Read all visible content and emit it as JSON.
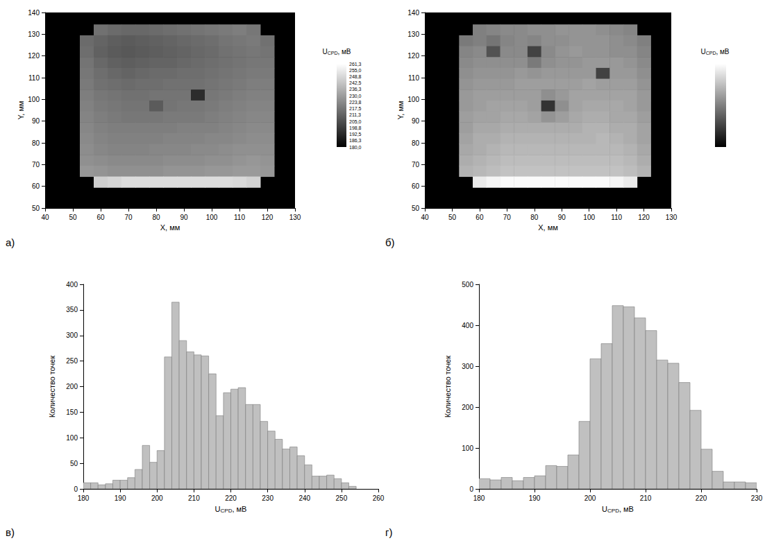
{
  "chart_data": [
    {
      "type": "heatmap",
      "panel": "а)",
      "xlabel": "X, мм",
      "ylabel": "Y, мм",
      "xlim": [
        40,
        130
      ],
      "xticks": [
        40,
        50,
        60,
        70,
        80,
        90,
        100,
        110,
        120,
        130
      ],
      "ylim": [
        50,
        140
      ],
      "yticks": [
        50,
        60,
        70,
        80,
        90,
        100,
        110,
        120,
        130,
        140
      ],
      "grid": false,
      "x": [
        55,
        60,
        65,
        70,
        75,
        80,
        85,
        90,
        95,
        100,
        105,
        110,
        115,
        120
      ],
      "y": [
        132,
        127,
        122,
        117,
        112,
        107,
        102,
        97,
        92,
        87,
        82,
        77,
        72,
        67,
        62
      ],
      "cells": [
        [
          null,
          216,
          214,
          213,
          213,
          214,
          215,
          216,
          217,
          218,
          219,
          220,
          218,
          null
        ],
        [
          214,
          212,
          210,
          209,
          210,
          211,
          212,
          213,
          214,
          215,
          217,
          218,
          219,
          216
        ],
        [
          215,
          211,
          209,
          208,
          209,
          210,
          211,
          212,
          213,
          214,
          216,
          217,
          218,
          217
        ],
        [
          217,
          213,
          211,
          210,
          211,
          212,
          212,
          213,
          214,
          215,
          216,
          217,
          218,
          218
        ],
        [
          218,
          215,
          213,
          212,
          213,
          214,
          214,
          215,
          215,
          216,
          217,
          218,
          219,
          219
        ],
        [
          219,
          216,
          215,
          214,
          215,
          215,
          216,
          216,
          216,
          217,
          218,
          219,
          220,
          220
        ],
        [
          220,
          218,
          217,
          216,
          216,
          217,
          217,
          217,
          194,
          218,
          219,
          220,
          221,
          221
        ],
        [
          221,
          219,
          218,
          217,
          217,
          209,
          217,
          218,
          218,
          219,
          220,
          221,
          222,
          222
        ],
        [
          222,
          220,
          219,
          218,
          218,
          218,
          219,
          219,
          219,
          220,
          221,
          222,
          223,
          223
        ],
        [
          223,
          221,
          220,
          220,
          220,
          220,
          220,
          221,
          221,
          221,
          222,
          223,
          224,
          224
        ],
        [
          224,
          222,
          221,
          221,
          221,
          221,
          222,
          222,
          222,
          223,
          223,
          224,
          225,
          225
        ],
        [
          225,
          223,
          222,
          222,
          222,
          223,
          223,
          223,
          224,
          224,
          225,
          226,
          226,
          226
        ],
        [
          226,
          225,
          224,
          224,
          224,
          224,
          225,
          225,
          225,
          226,
          226,
          227,
          228,
          227
        ],
        [
          228,
          227,
          226,
          226,
          226,
          226,
          227,
          227,
          227,
          228,
          228,
          229,
          229,
          228
        ],
        [
          null,
          246,
          248,
          250,
          250,
          250,
          250,
          250,
          250,
          250,
          250,
          249,
          247,
          null
        ]
      ],
      "colorbar": {
        "title": {
          "base": "U",
          "sub": "CPD",
          "unit": ", мВ"
        },
        "range": [
          180,
          261.25
        ],
        "ticks": [
          {
            "value": 180,
            "label": "180,0"
          },
          {
            "value": 186.25,
            "label": "186,3"
          },
          {
            "value": 192.5,
            "label": "192,5"
          },
          {
            "value": 198.75,
            "label": "198,8"
          },
          {
            "value": 205,
            "label": "205,0"
          },
          {
            "value": 211.25,
            "label": "211,3"
          },
          {
            "value": 217.5,
            "label": "217,5"
          },
          {
            "value": 223.75,
            "label": "223,8"
          },
          {
            "value": 230,
            "label": "230,0"
          },
          {
            "value": 236.25,
            "label": "236,3"
          },
          {
            "value": 242.5,
            "label": "242,5"
          },
          {
            "value": 248.75,
            "label": "248,8"
          },
          {
            "value": 255,
            "label": "255,0"
          },
          {
            "value": 261.25,
            "label": "261,3"
          }
        ]
      }
    },
    {
      "type": "heatmap",
      "panel": "б)",
      "xlabel": "X, мм",
      "ylabel": "Y, мм",
      "xlim": [
        40,
        130
      ],
      "xticks": [
        40,
        50,
        60,
        70,
        80,
        90,
        100,
        110,
        120,
        130
      ],
      "ylim": [
        50,
        140
      ],
      "yticks": [
        50,
        60,
        70,
        80,
        90,
        100,
        110,
        120,
        130,
        140
      ],
      "grid": false,
      "x": [
        55,
        60,
        65,
        70,
        75,
        80,
        85,
        90,
        95,
        100,
        105,
        110,
        115,
        120
      ],
      "y": [
        132,
        127,
        122,
        117,
        112,
        107,
        102,
        97,
        92,
        87,
        82,
        77,
        72,
        67,
        62
      ],
      "cells": [
        [
          null,
          205,
          206,
          207,
          207,
          208,
          208,
          209,
          209,
          209,
          208,
          207,
          206,
          null
        ],
        [
          204,
          205,
          203,
          206,
          207,
          206,
          208,
          208,
          209,
          209,
          209,
          208,
          207,
          205
        ],
        [
          206,
          207,
          196,
          207,
          207,
          193,
          207,
          209,
          210,
          209,
          209,
          208,
          208,
          206
        ],
        [
          207,
          208,
          208,
          208,
          208,
          204,
          208,
          209,
          209,
          210,
          210,
          210,
          209,
          207
        ],
        [
          208,
          209,
          209,
          209,
          210,
          209,
          210,
          210,
          210,
          210,
          193,
          210,
          210,
          208
        ],
        [
          209,
          210,
          210,
          210,
          211,
          211,
          211,
          211,
          211,
          212,
          211,
          211,
          211,
          209
        ],
        [
          210,
          211,
          211,
          211,
          211,
          211,
          208,
          210,
          212,
          212,
          212,
          212,
          212,
          210
        ],
        [
          210,
          211,
          212,
          212,
          212,
          211,
          190,
          208,
          212,
          213,
          213,
          213,
          212,
          210
        ],
        [
          211,
          212,
          212,
          213,
          213,
          212,
          209,
          211,
          213,
          214,
          214,
          213,
          213,
          211
        ],
        [
          211,
          213,
          213,
          214,
          214,
          214,
          214,
          214,
          214,
          215,
          215,
          214,
          214,
          212
        ],
        [
          212,
          214,
          214,
          215,
          215,
          215,
          215,
          215,
          215,
          215,
          216,
          215,
          214,
          212
        ],
        [
          213,
          214,
          215,
          216,
          216,
          216,
          216,
          216,
          216,
          216,
          216,
          216,
          215,
          213
        ],
        [
          214,
          215,
          216,
          217,
          217,
          217,
          217,
          217,
          217,
          217,
          217,
          217,
          216,
          214
        ],
        [
          215,
          216,
          217,
          218,
          218,
          218,
          218,
          218,
          218,
          218,
          218,
          218,
          217,
          215
        ],
        [
          null,
          226,
          228,
          229,
          229,
          229,
          229,
          229,
          229,
          229,
          229,
          228,
          226,
          null
        ]
      ],
      "colorbar": {
        "title": {
          "base": "U",
          "sub": "CPD",
          "unit": ", мВ"
        },
        "range": [
          180,
          230
        ]
      }
    },
    {
      "type": "histogram",
      "panel": "в)",
      "xlabel": {
        "base": "U",
        "sub": "CPD",
        "unit": ", мВ"
      },
      "ylabel": "Количество точек",
      "xlim": [
        180,
        260
      ],
      "xticks": [
        180,
        190,
        200,
        210,
        220,
        230,
        240,
        250,
        260
      ],
      "ylim": [
        0,
        400
      ],
      "yticks": [
        0,
        50,
        100,
        150,
        200,
        250,
        300,
        350,
        400
      ],
      "grid": false,
      "color": "#c0c0c0",
      "bins": [
        180,
        182,
        184,
        186,
        188,
        190,
        192,
        194,
        196,
        198,
        200,
        202,
        204,
        206,
        208,
        210,
        212,
        214,
        216,
        218,
        220,
        222,
        224,
        226,
        228,
        230,
        232,
        234,
        236,
        238,
        240,
        242,
        244,
        246,
        248,
        250,
        252,
        254
      ],
      "values": [
        12,
        12,
        8,
        10,
        17,
        17,
        22,
        38,
        85,
        52,
        75,
        258,
        365,
        290,
        268,
        262,
        260,
        225,
        143,
        188,
        195,
        198,
        165,
        165,
        132,
        113,
        97,
        78,
        82,
        65,
        47,
        25,
        25,
        27,
        20,
        12,
        5
      ]
    },
    {
      "type": "histogram",
      "panel": "г)",
      "xlabel": {
        "base": "U",
        "sub": "CPD",
        "unit": ", мВ"
      },
      "ylabel": "Количество точек",
      "xlim": [
        180,
        230
      ],
      "xticks": [
        180,
        190,
        200,
        210,
        220,
        230
      ],
      "ylim": [
        0,
        500
      ],
      "yticks": [
        0,
        100,
        200,
        300,
        400,
        500
      ],
      "grid": false,
      "color": "#c0c0c0",
      "bins": [
        180,
        182,
        184,
        186,
        188,
        190,
        192,
        194,
        196,
        198,
        200,
        202,
        204,
        206,
        208,
        210,
        212,
        214,
        216,
        218,
        220,
        222,
        224,
        226,
        228,
        230
      ],
      "values": [
        25,
        22,
        28,
        20,
        28,
        32,
        57,
        55,
        83,
        165,
        318,
        355,
        448,
        445,
        418,
        387,
        315,
        307,
        260,
        192,
        97,
        43,
        17,
        17,
        15
      ]
    }
  ]
}
